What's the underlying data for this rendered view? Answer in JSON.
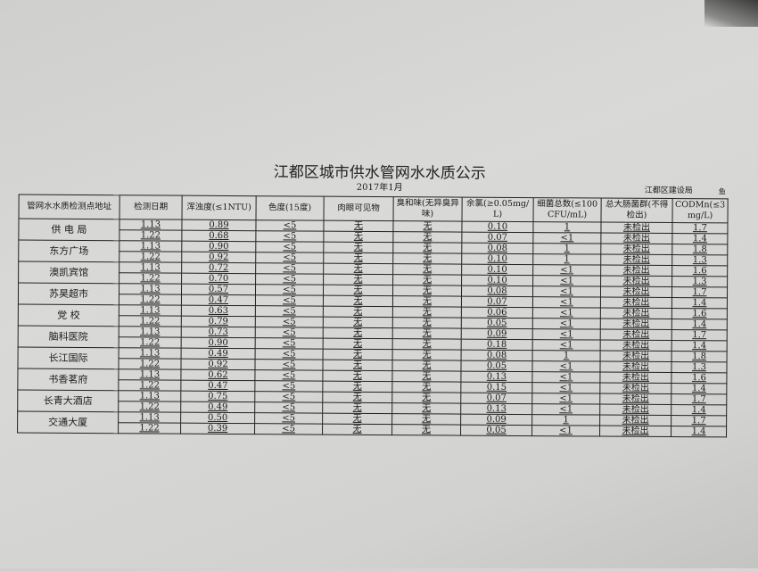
{
  "title": "江都区城市供水管网水水质公示",
  "subtitle": "2017年1月",
  "org": "江都区建设局",
  "mark": "鱼",
  "headers": [
    "管网水水质检测点地址",
    "检测日期",
    "浑浊度(≤1NTU)",
    "色度(15度)",
    "肉眼可见物",
    "臭和味(无异臭异味)",
    "余氯(≥0.05mg/L)",
    "细菌总数(≤100CFU/mL)",
    "总大肠菌群(不得检出)",
    "CODMn(≤3mg/L)"
  ],
  "sites": [
    {
      "name": "供 电 局",
      "rows": [
        [
          "1.13",
          "0.89",
          "<5",
          "无",
          "无",
          "0.10",
          "1",
          "未检出",
          "1.7"
        ],
        [
          "1.22",
          "0.68",
          "<5",
          "无",
          "无",
          "0.07",
          "<1",
          "未检出",
          "1.4"
        ]
      ]
    },
    {
      "name": "东方广场",
      "rows": [
        [
          "1.13",
          "0.90",
          "<5",
          "无",
          "无",
          "0.08",
          "1",
          "未检出",
          "1.8"
        ],
        [
          "1.22",
          "0.92",
          "<5",
          "无",
          "无",
          "0.10",
          "1",
          "未检出",
          "1.3"
        ]
      ]
    },
    {
      "name": "澳凯宾馆",
      "rows": [
        [
          "1.13",
          "0.72",
          "<5",
          "无",
          "无",
          "0.10",
          "<1",
          "未检出",
          "1.6"
        ],
        [
          "1.22",
          "0.70",
          "<5",
          "无",
          "无",
          "0.10",
          "<1",
          "未检出",
          "1.3"
        ]
      ]
    },
    {
      "name": "苏昊超市",
      "rows": [
        [
          "1.13",
          "0.57",
          "<5",
          "无",
          "无",
          "0.08",
          "<1",
          "未检出",
          "1.7"
        ],
        [
          "1.22",
          "0.47",
          "<5",
          "无",
          "无",
          "0.07",
          "<1",
          "未检出",
          "1.4"
        ]
      ]
    },
    {
      "name": "党 校",
      "rows": [
        [
          "1.13",
          "0.63",
          "<5",
          "无",
          "无",
          "0.06",
          "<1",
          "未检出",
          "1.6"
        ],
        [
          "1.22",
          "0.79",
          "<5",
          "无",
          "无",
          "0.05",
          "<1",
          "未检出",
          "1.4"
        ]
      ]
    },
    {
      "name": "脑科医院",
      "rows": [
        [
          "1.13",
          "0.73",
          "<5",
          "无",
          "无",
          "0.09",
          "<1",
          "未检出",
          "1.7"
        ],
        [
          "1.22",
          "0.90",
          "<5",
          "无",
          "无",
          "0.18",
          "<1",
          "未检出",
          "1.4"
        ]
      ]
    },
    {
      "name": "长江国际",
      "rows": [
        [
          "1.13",
          "0.49",
          "<5",
          "无",
          "无",
          "0.08",
          "1",
          "未检出",
          "1.8"
        ],
        [
          "1.22",
          "0.92",
          "<5",
          "无",
          "无",
          "0.05",
          "<1",
          "未检出",
          "1.3"
        ]
      ]
    },
    {
      "name": "书香茗府",
      "rows": [
        [
          "1.13",
          "0.62",
          "<5",
          "无",
          "无",
          "0.13",
          "<1",
          "未检出",
          "1.6"
        ],
        [
          "1.22",
          "0.47",
          "<5",
          "无",
          "无",
          "0.15",
          "<1",
          "未检出",
          "1.4"
        ]
      ]
    },
    {
      "name": "长青大酒店",
      "rows": [
        [
          "1.13",
          "0.75",
          "<5",
          "无",
          "无",
          "0.07",
          "<1",
          "未检出",
          "1.7"
        ],
        [
          "1.22",
          "0.49",
          "<5",
          "无",
          "无",
          "0.13",
          "<1",
          "未检出",
          "1.4"
        ]
      ]
    },
    {
      "name": "交通大厦",
      "rows": [
        [
          "1.13",
          "0.50",
          "<5",
          "无",
          "无",
          "0.09",
          "1",
          "未检出",
          "1.7"
        ],
        [
          "1.22",
          "0.39",
          "<5",
          "无",
          "无",
          "0.05",
          "<1",
          "未检出",
          "1.4"
        ]
      ]
    }
  ]
}
